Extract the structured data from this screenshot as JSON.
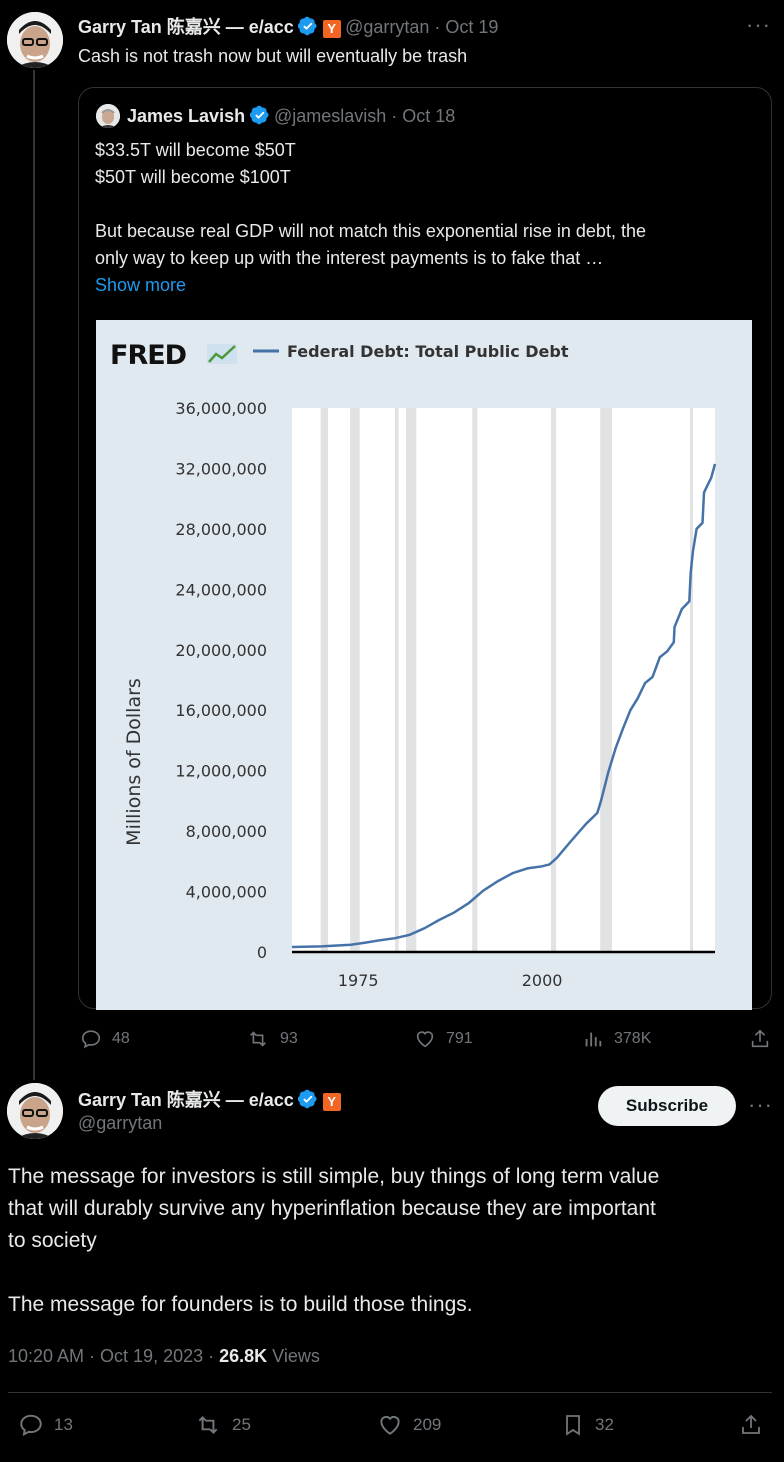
{
  "first_tweet": {
    "author_name": "Garry Tan 陈嘉兴 — e/acc",
    "badge": "Y",
    "handle_date": "@garrytan · Oct 19",
    "text": "Cash is not trash now but will eventually be trash"
  },
  "quoted_tweet": {
    "author_name": "James Lavish",
    "handle_date": "@jameslavish · Oct 18",
    "line1": "$33.5T will become $50T",
    "line2": "$50T will become $100T",
    "line3": "But because real GDP will not match this exponential rise in debt, the",
    "line4": "only way to keep up with the interest payments is to fake that …",
    "show_more": "Show more"
  },
  "first_actions": {
    "replies": "48",
    "reposts": "93",
    "likes": "791",
    "views": "378K"
  },
  "second_tweet": {
    "author_name": "Garry Tan 陈嘉兴 — e/acc",
    "badge": "Y",
    "handle": "@garrytan",
    "subscribe": "Subscribe",
    "para1_line1": "The message for investors is still simple, buy things of long term value",
    "para1_line2": "that will durably survive any hyperinflation because they are important",
    "para1_line3": "to society",
    "para2": "The message for founders is to build those things.",
    "timestamp": "10:20 AM · Oct 19, 2023 · ",
    "views_count": "26.8K",
    "views_label": " Views"
  },
  "second_actions": {
    "replies": "13",
    "reposts": "25",
    "likes": "209",
    "bookmarks": "32"
  },
  "chart_data": {
    "type": "line",
    "logo": "FRED",
    "title": "",
    "legend": "Federal Debt: Total Public Debt",
    "ylabel": "Millions of Dollars",
    "xlabel": "",
    "ylim": [
      0,
      36000000
    ],
    "xlim": [
      1966,
      2023.5
    ],
    "y_ticks": [
      "36,000,000",
      "32,000,000",
      "28,000,000",
      "24,000,000",
      "20,000,000",
      "16,000,000",
      "12,000,000",
      "8,000,000",
      "4,000,000",
      "0"
    ],
    "x_ticks": [
      "1975",
      "2000"
    ],
    "series": [
      {
        "name": "Federal Debt: Total Public Debt",
        "color": "#4572a7",
        "x": [
          1966,
          1970,
          1974,
          1976,
          1978,
          1980,
          1982,
          1984,
          1986,
          1988,
          1990,
          1992,
          1994,
          1996,
          1998,
          2000,
          2001,
          2002,
          2004,
          2006,
          2007.5,
          2008,
          2009,
          2010,
          2011,
          2012,
          2013,
          2014,
          2015,
          2016,
          2017,
          2017.9,
          2018,
          2019,
          2020,
          2020.2,
          2020.5,
          2021,
          2021.8,
          2022,
          2022.5,
          2023,
          2023.5
        ],
        "y": [
          330000,
          370000,
          480000,
          620000,
          780000,
          910000,
          1140000,
          1570000,
          2120000,
          2600000,
          3230000,
          4060000,
          4690000,
          5220000,
          5530000,
          5670000,
          5800000,
          6230000,
          7380000,
          8500000,
          9200000,
          10000000,
          11900000,
          13500000,
          14800000,
          16000000,
          16800000,
          17800000,
          18200000,
          19500000,
          19900000,
          20500000,
          21500000,
          22700000,
          23200000,
          25100000,
          26500000,
          28000000,
          28400000,
          30400000,
          30900000,
          31400000,
          32300000
        ]
      }
    ],
    "recession_bands": [
      [
        1969.9,
        1970.9
      ],
      [
        1973.9,
        1975.2
      ],
      [
        1980.0,
        1980.5
      ],
      [
        1981.5,
        1982.9
      ],
      [
        1990.5,
        1991.2
      ],
      [
        2001.2,
        2001.9
      ],
      [
        2007.9,
        2009.5
      ],
      [
        2020.1,
        2020.4
      ]
    ],
    "grid": false
  }
}
